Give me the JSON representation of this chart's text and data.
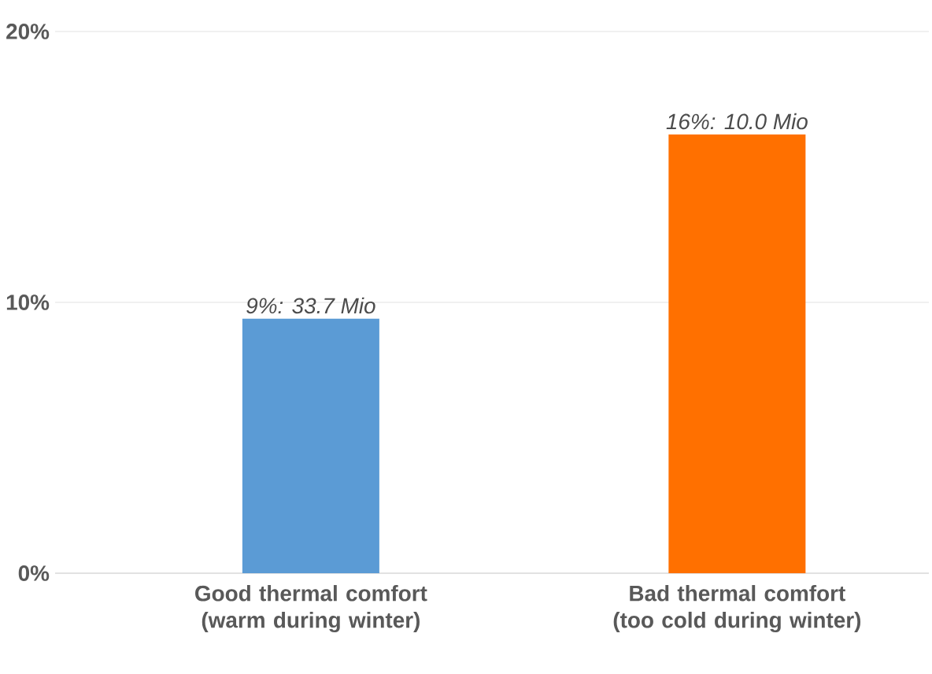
{
  "chart_data": {
    "type": "bar",
    "categories": [
      "Good thermal comfort (warm during winter)",
      "Bad thermal comfort (too cold during winter)"
    ],
    "values": [
      9.4,
      16.2
    ],
    "colors": [
      "#5b9bd5",
      "#ff7000"
    ],
    "value_labels": [
      "9%: 33.7 Mio",
      "16%: 10.0 Mio"
    ],
    "ylim": [
      0,
      20
    ],
    "yticks": [
      {
        "value": 0,
        "label": "0%"
      },
      {
        "value": 10,
        "label": "10%"
      },
      {
        "value": 20,
        "label": "20%"
      }
    ],
    "grid": "y"
  }
}
